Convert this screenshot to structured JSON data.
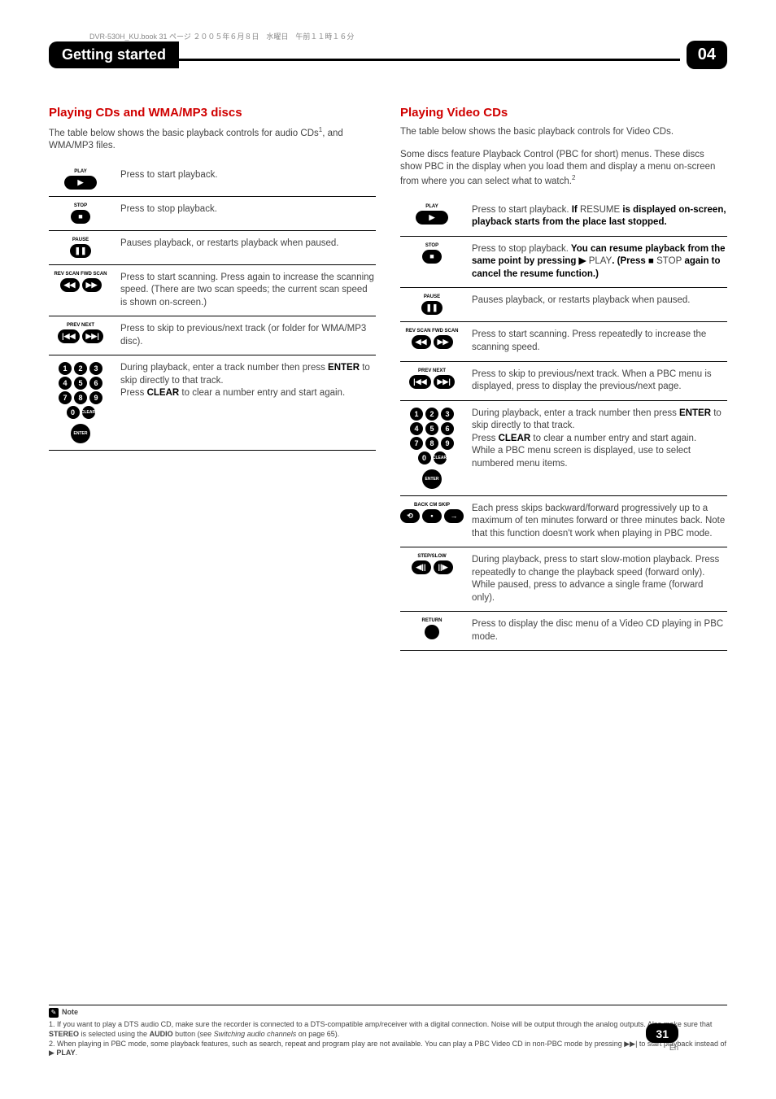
{
  "meta": {
    "filename_line": "DVR-530H_KU.book 31 ページ ２００５年６月８日　水曜日　午前１１時１６分"
  },
  "header": {
    "title": "Getting started",
    "chapter": "04"
  },
  "left": {
    "section_title": "Playing CDs and WMA/MP3 discs",
    "intro_prefix": "The table below shows the basic playback controls for audio CDs",
    "intro_suffix": ", and WMA/MP3 files.",
    "intro_sup": "1",
    "rows": [
      {
        "labels": [
          "PLAY"
        ],
        "icons": [
          "▶"
        ],
        "play_btn": true,
        "desc": "Press to start playback."
      },
      {
        "labels": [
          "STOP"
        ],
        "icons": [
          "■"
        ],
        "desc": "Press to stop playback."
      },
      {
        "labels": [
          "PAUSE"
        ],
        "icons": [
          "❚❚"
        ],
        "desc": "Pauses playback, or restarts playback when paused."
      },
      {
        "labels": [
          "REV SCAN  FWD SCAN"
        ],
        "icons": [
          "◀◀",
          "▶▶"
        ],
        "row_btns": true,
        "desc": "Press to start scanning. Press again to increase the scanning speed. (There are two scan speeds; the current scan speed is shown on-screen.)"
      },
      {
        "labels": [
          "PREV        NEXT"
        ],
        "icons": [
          "|◀◀",
          "▶▶|"
        ],
        "row_btns": true,
        "desc": "Press to skip to previous/next track (or folder for WMA/MP3 disc)."
      },
      {
        "numpad": true,
        "clear": "CLEAR",
        "enter": "ENTER",
        "desc_parts": [
          "During playback, enter a track number then press ",
          "ENTER",
          " to skip directly to that track."
        ],
        "desc2_parts": [
          "Press ",
          "CLEAR",
          " to clear a number entry and start again."
        ]
      }
    ]
  },
  "right": {
    "section_title": "Playing Video CDs",
    "intro1": "The table below shows the basic playback controls for Video CDs.",
    "intro2_prefix": "Some discs feature Playback Control (PBC for short) menus. These discs show PBC in the display when you load them and display a menu on-screen from where you can select what to watch.",
    "intro2_sup": "2",
    "rows": [
      {
        "labels": [
          "PLAY"
        ],
        "icons": [
          "▶"
        ],
        "play_btn": true,
        "desc_parts": [
          "Press to start playback.",
          " If ",
          "RESUME",
          " is displayed on-screen, playback starts from the place last stopped."
        ]
      },
      {
        "labels": [
          "STOP"
        ],
        "icons": [
          "■"
        ],
        "desc_parts": [
          "Press to stop playback.",
          " You can resume playback from the same point by pressing ▶ ",
          "PLAY",
          ". (Press ■ ",
          "STOP",
          " again to cancel the resume function.)"
        ]
      },
      {
        "labels": [
          "PAUSE"
        ],
        "icons": [
          "❚❚"
        ],
        "desc": "Pauses playback, or restarts playback when paused."
      },
      {
        "labels": [
          "REV SCAN  FWD SCAN"
        ],
        "icons": [
          "◀◀",
          "▶▶"
        ],
        "row_btns": true,
        "desc": "Press to start scanning. Press repeatedly to increase the scanning speed."
      },
      {
        "labels": [
          "PREV        NEXT"
        ],
        "icons": [
          "|◀◀",
          "▶▶|"
        ],
        "row_btns": true,
        "desc": "Press to skip to previous/next track. When a PBC menu is displayed, press to display the previous/next page."
      },
      {
        "numpad": true,
        "clear": "CLEAR",
        "enter": "ENTER",
        "desc_parts": [
          "During playback, enter a track number then press ",
          "ENTER",
          " to skip directly to that track."
        ],
        "desc2_parts": [
          "Press ",
          "CLEAR",
          " to clear a number entry and start again."
        ],
        "desc3": "While a PBC menu screen is displayed, use to select numbered menu items."
      },
      {
        "labels": [
          "BACK  CM  SKIP"
        ],
        "icons": [
          "⟲",
          "•",
          "→"
        ],
        "row_btns": true,
        "desc": "Each press skips backward/forward progressively up to a maximum of ten minutes forward or three minutes back. Note that this function doesn't work when playing in PBC mode."
      },
      {
        "labels": [
          "STEP/SLOW"
        ],
        "icons": [
          "◀||",
          "||▶"
        ],
        "row_btns": true,
        "desc": "During playback, press to start slow-motion playback. Press repeatedly to change the playback speed (forward only). While paused, press to advance a single frame (forward only)."
      },
      {
        "labels": [
          "RETURN"
        ],
        "solid_circle": true,
        "desc": "Press to display the disc menu of a Video CD playing in PBC mode."
      }
    ]
  },
  "notes": {
    "label": "Note",
    "n1_parts": [
      "1. If you want to play a DTS audio CD, make sure the recorder is connected to a DTS-compatible amp/receiver with a digital connection. Noise will be output through the analog outputs. Also make sure that ",
      "STEREO",
      " is selected using the ",
      "AUDIO",
      " button (see ",
      "Switching audio channels",
      " on page 65)."
    ],
    "n2_parts": [
      "2. When playing in PBC mode, some playback features, such as search, repeat and program play are not available. You can play a PBC Video CD in non-PBC mode by pressing ▶▶| to start playback instead of ▶ ",
      "PLAY",
      "."
    ]
  },
  "page": {
    "num": "31",
    "lang": "En"
  }
}
